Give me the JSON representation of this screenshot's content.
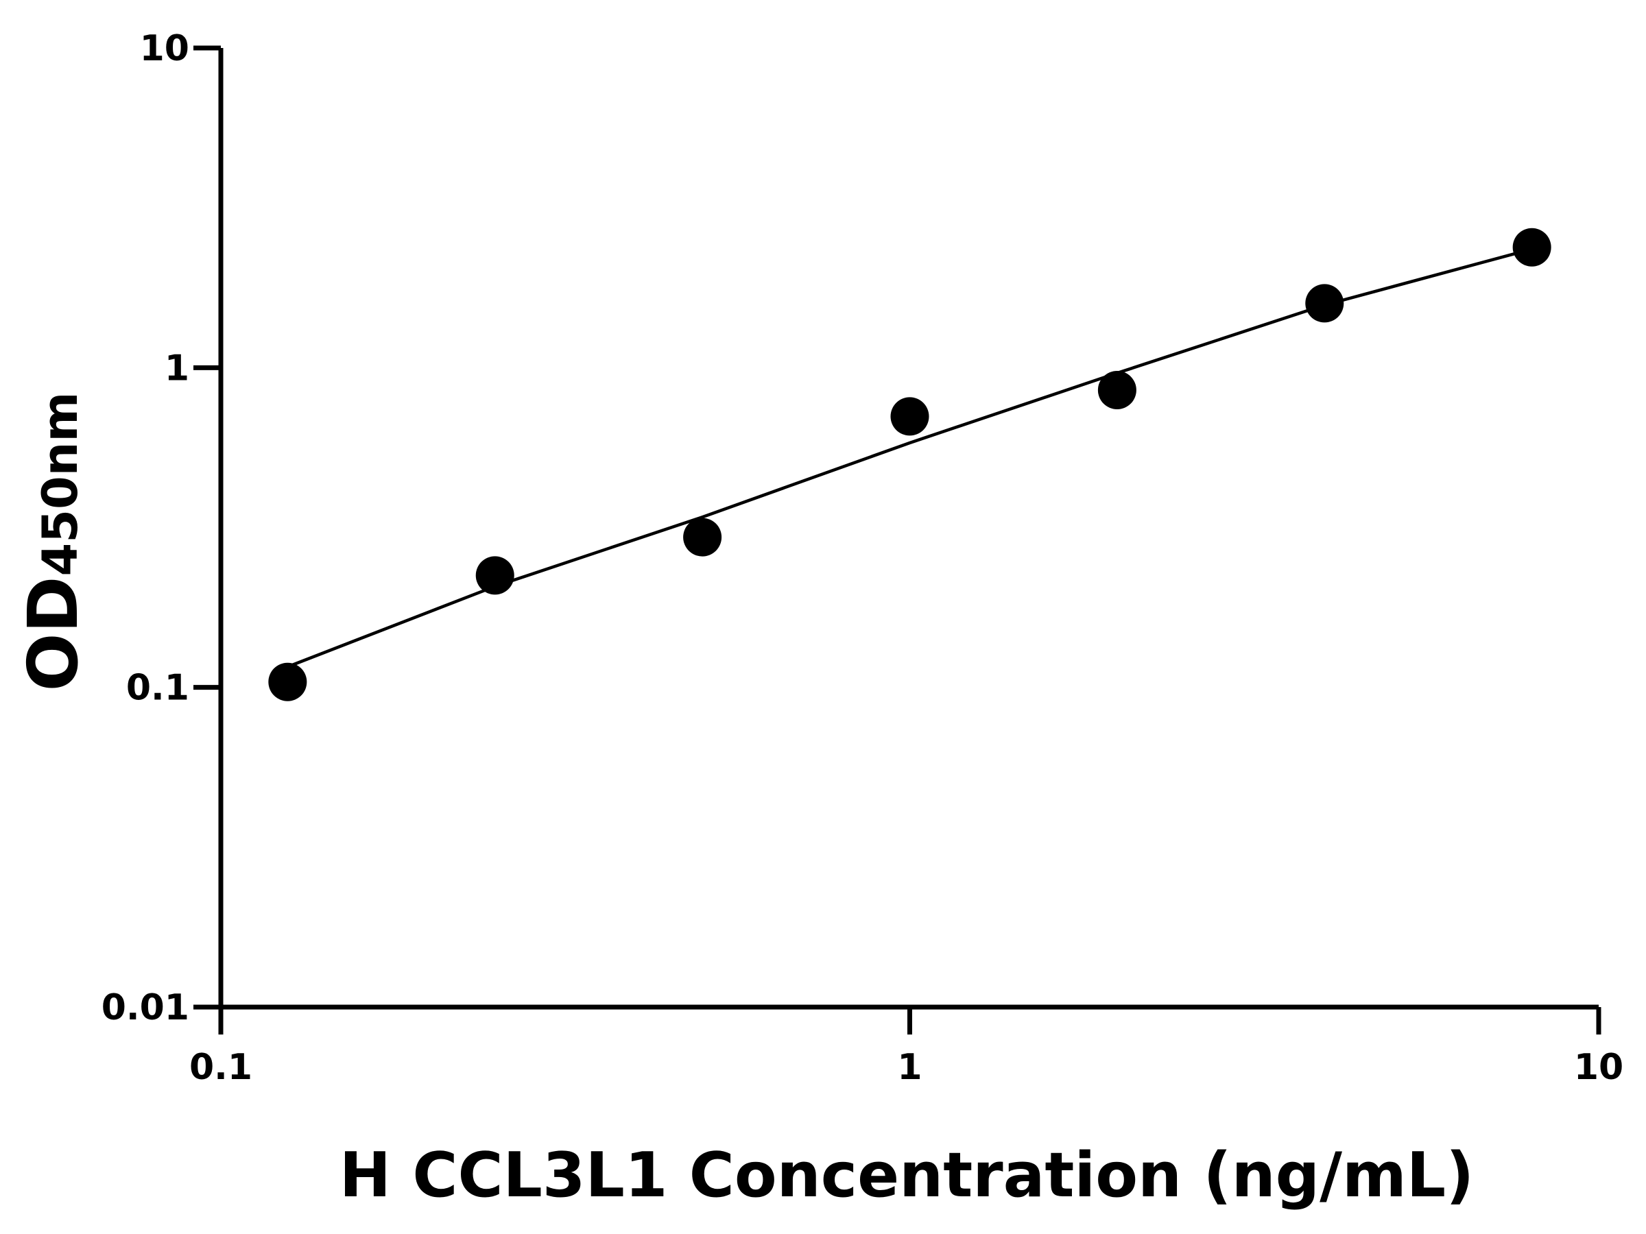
{
  "chart_data": {
    "type": "scatter",
    "xlabel": "H CCL3L1 Concentration (ng/mL)",
    "ylabel": "OD",
    "ylabel_sub": "450nm",
    "x": [
      0.125,
      0.25,
      0.5,
      1,
      2,
      4,
      8
    ],
    "values": [
      0.104,
      0.224,
      0.295,
      0.704,
      0.851,
      1.59,
      2.38
    ],
    "fit": [
      0.116,
      0.207,
      0.341,
      0.582,
      0.962,
      1.57,
      2.35
    ],
    "color": "#000000",
    "xscale": "log",
    "yscale": "log",
    "xlim": [
      0.1,
      10
    ],
    "ylim": [
      0.01,
      10
    ],
    "xticks": [
      0.1,
      1,
      10
    ],
    "yticks": [
      0.01,
      0.1,
      1,
      10
    ]
  }
}
